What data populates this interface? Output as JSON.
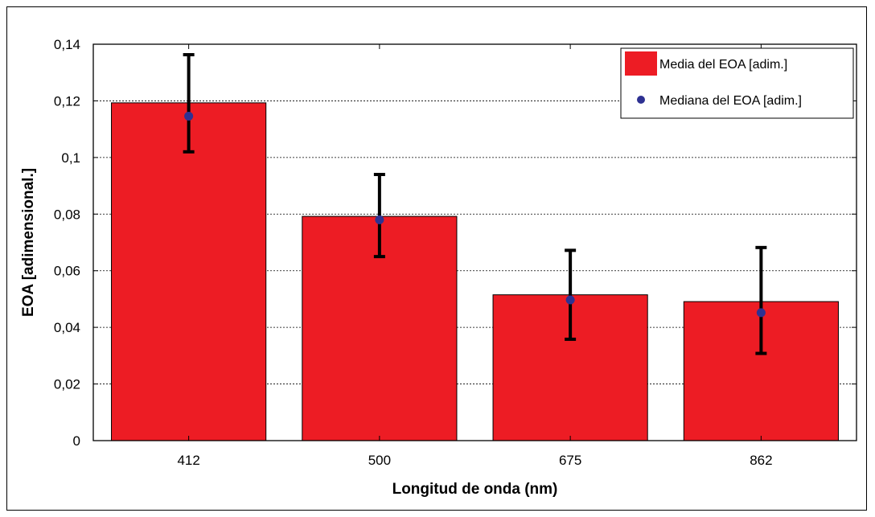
{
  "chart_data": {
    "type": "bar",
    "categories": [
      "412",
      "500",
      "675",
      "862"
    ],
    "series": [
      {
        "name": "Media del EOA [adim.]",
        "values": [
          0.1193,
          0.0792,
          0.0515,
          0.0491
        ],
        "error_low": [
          0.102,
          0.065,
          0.0358,
          0.0308
        ],
        "error_high": [
          0.1363,
          0.094,
          0.0672,
          0.0682
        ],
        "color": "#ed1c24"
      },
      {
        "name": "Mediana del EOA [adim.]",
        "values": [
          0.1146,
          0.078,
          0.0497,
          0.0452
        ],
        "color": "#2e3192",
        "mark": "point"
      }
    ],
    "title": "",
    "xlabel": "Longitud de onda (nm)",
    "ylabel": "EOA [adimensional.]",
    "ylim": [
      0,
      0.14
    ],
    "yticks": [
      "0",
      "0,02",
      "0,04",
      "0,06",
      "0,08",
      "0,1",
      "0,12",
      "0,14"
    ],
    "grid": "horizontal dotted",
    "legend_position": "top-right"
  }
}
